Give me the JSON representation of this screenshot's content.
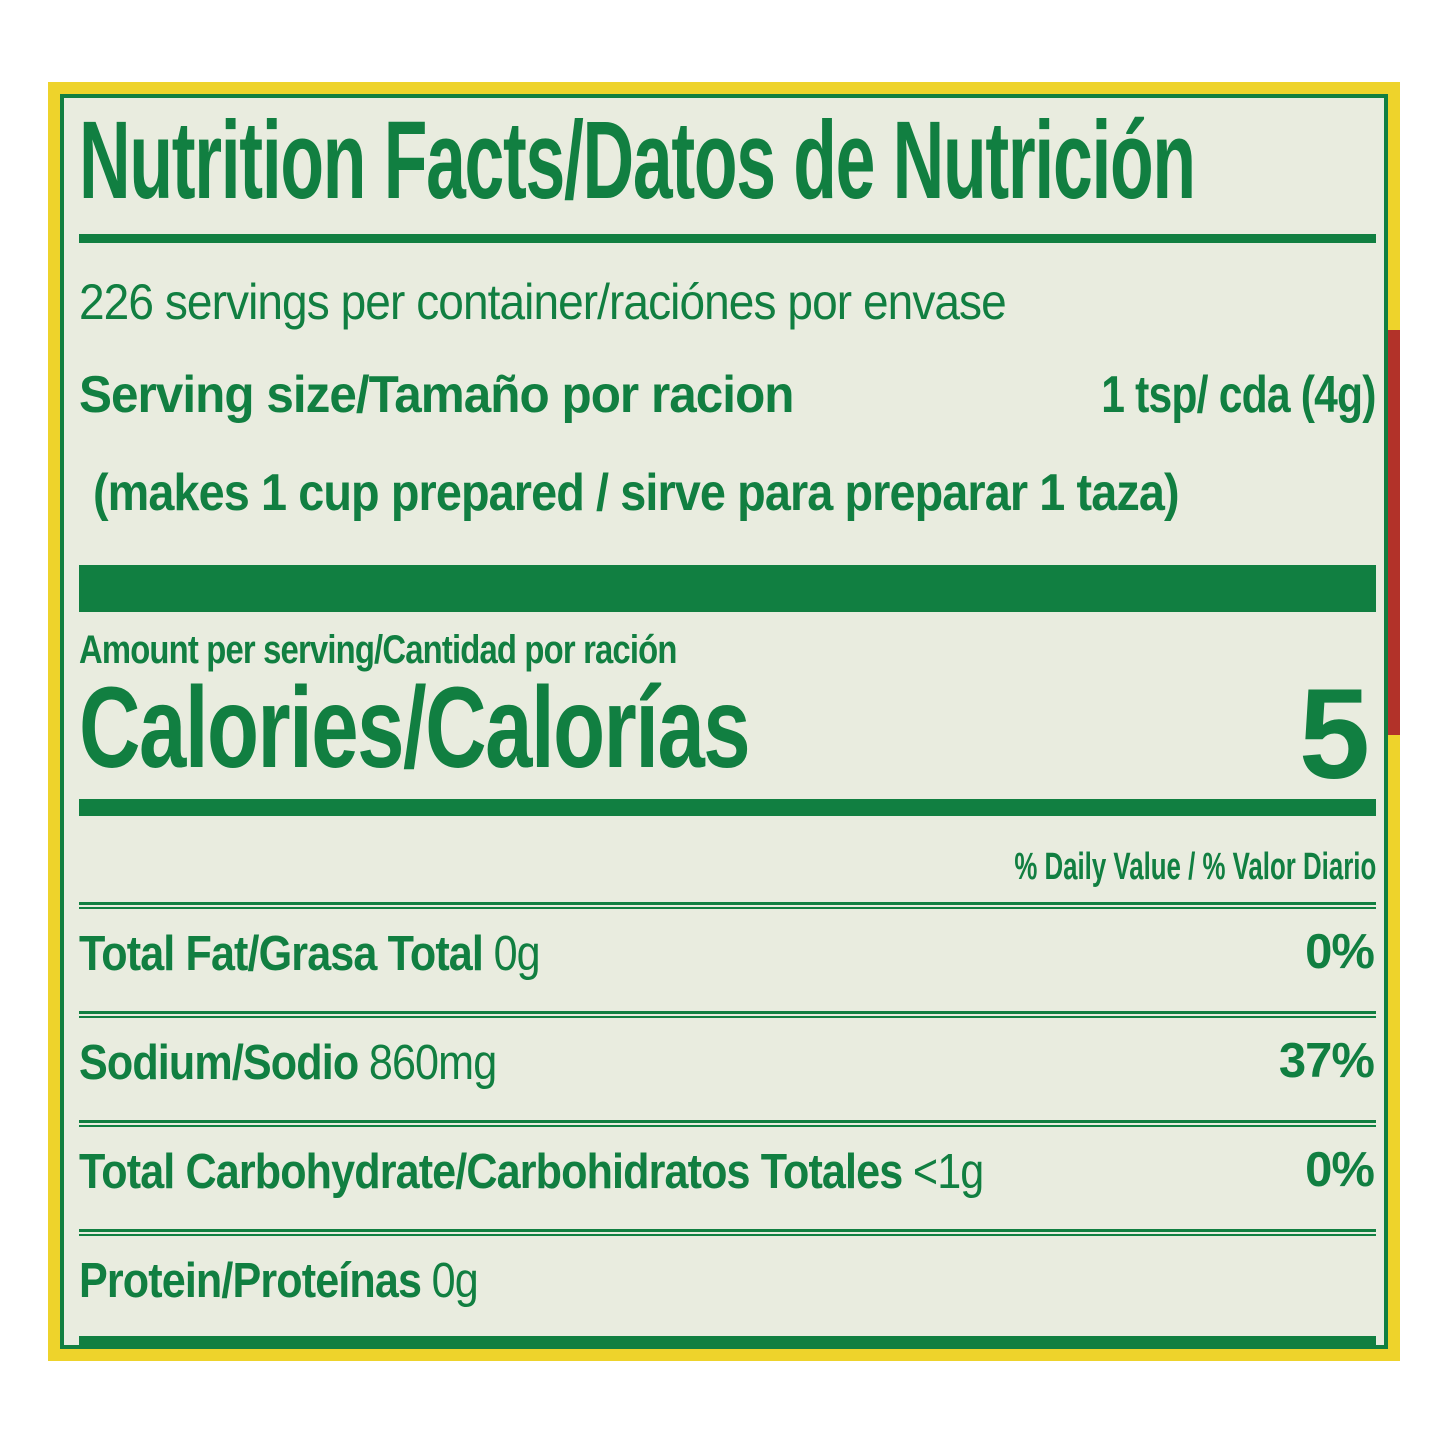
{
  "colors": {
    "text_green": "#117f41",
    "label_background": "#e9ecdf",
    "border_yellow": "#eed32b",
    "package_edge_red": "#b23229"
  },
  "label": {
    "title": "Nutrition Facts/Datos de Nutrición",
    "servings_per_container": "226 servings per container/raciónes por envase",
    "serving_size_label": "Serving size/Tamaño por racion",
    "serving_size_value": "1 tsp/ cda (4g)",
    "serving_note": "(makes 1 cup prepared / sirve para preparar 1 taza)",
    "amount_per_serving": "Amount per serving/Cantidad por ración",
    "calories_label": "Calories/Calorías",
    "calories_value": "5",
    "daily_value_header": "% Daily Value / % Valor Diario",
    "nutrients": [
      {
        "label": "Total Fat/Grasa Total",
        "value": "0g",
        "pct": "0%"
      },
      {
        "label": "Sodium/Sodio",
        "value": "860mg",
        "pct": "37%"
      },
      {
        "label": "Total Carbohydrate/Carbohidratos Totales",
        "value": "<1g",
        "pct": "0%"
      },
      {
        "label": "Protein/Proteínas",
        "value": "0g",
        "pct": ""
      }
    ]
  }
}
